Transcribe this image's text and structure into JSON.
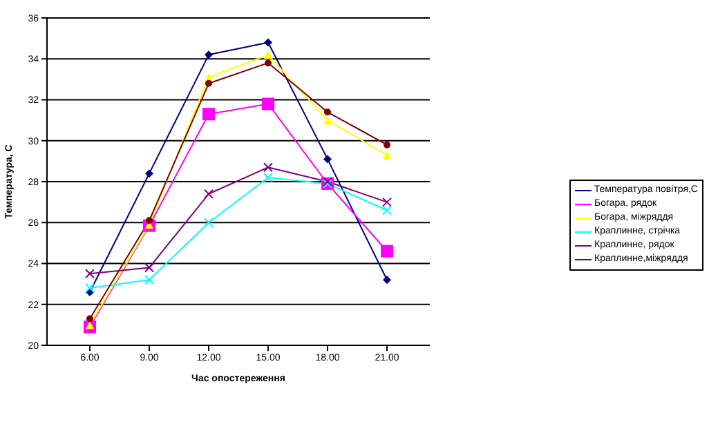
{
  "chart_data": {
    "type": "line",
    "xlabel": "Час опостереження",
    "ylabel": "Температура, С",
    "categories": [
      "6.00",
      "9.00",
      "12.00",
      "15.00",
      "18.00",
      "21.00"
    ],
    "series": [
      {
        "name": "Температура повітря,С",
        "color": "#000080",
        "marker": "diamond",
        "values": [
          22.6,
          28.4,
          34.2,
          34.8,
          29.1,
          23.2
        ]
      },
      {
        "name": "Богара, рядок",
        "color": "#ff00ff",
        "marker": "square",
        "values": [
          20.9,
          25.85,
          31.3,
          31.8,
          27.9,
          24.6
        ]
      },
      {
        "name": "Богара, міжряддя",
        "color": "#ffff00",
        "marker": "triangle",
        "values": [
          21.0,
          25.9,
          33.1,
          34.2,
          31.0,
          29.3
        ]
      },
      {
        "name": "Краплинне, стрічка",
        "color": "#00ffff",
        "marker": "cross",
        "values": [
          22.8,
          23.2,
          26.0,
          28.2,
          27.9,
          26.6
        ]
      },
      {
        "name": "Краплинне, рядок",
        "color": "#800080",
        "marker": "cross",
        "values": [
          23.5,
          23.8,
          27.4,
          28.7,
          28.0,
          27.0
        ]
      },
      {
        "name": "Краплинне,міжряддя",
        "color": "#800000",
        "marker": "circle",
        "values": [
          21.3,
          26.1,
          32.8,
          33.8,
          31.4,
          29.8
        ]
      }
    ],
    "ylim": [
      20,
      36
    ],
    "yticks": [
      20,
      22,
      24,
      26,
      28,
      30,
      32,
      34,
      36
    ],
    "grid": "y",
    "legend": "right"
  }
}
